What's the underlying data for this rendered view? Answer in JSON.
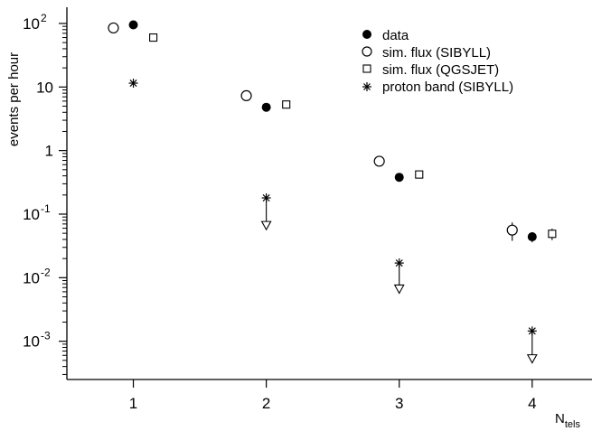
{
  "chart_data": {
    "type": "scatter",
    "title": "",
    "xlabel": "N",
    "xlabel_sub": "tels",
    "ylabel": "events per hour",
    "yscale": "log",
    "xlim": [
      0.5,
      4.45
    ],
    "ylim": [
      0.00025,
      180
    ],
    "grid": false,
    "legend_position": "top-right",
    "x_ticks": [
      {
        "value": 1,
        "label": "1"
      },
      {
        "value": 2,
        "label": "2"
      },
      {
        "value": 3,
        "label": "3"
      },
      {
        "value": 4,
        "label": "4"
      }
    ],
    "y_ticks": [
      {
        "value": 100,
        "base": "10",
        "exp": "2"
      },
      {
        "value": 10,
        "base": "10",
        "exp": ""
      },
      {
        "value": 1,
        "base": "1",
        "exp": ""
      },
      {
        "value": 0.1,
        "base": "10",
        "exp": "-1"
      },
      {
        "value": 0.01,
        "base": "10",
        "exp": "-2"
      },
      {
        "value": 0.001,
        "base": "10",
        "exp": "-3"
      }
    ],
    "series": [
      {
        "name": "data",
        "marker": "filled-circle",
        "x": [
          1,
          2,
          3,
          4
        ],
        "y": [
          95,
          4.8,
          0.38,
          0.044
        ],
        "yerr": [
          3,
          0.35,
          0.04,
          0.008
        ]
      },
      {
        "name": "sim. flux (SIBYLL)",
        "marker": "open-circle",
        "x": [
          0.85,
          1.85,
          2.85,
          3.85
        ],
        "y": [
          85,
          7.3,
          0.68,
          0.056
        ],
        "yerr": [
          5,
          0.6,
          0.12,
          0.018
        ]
      },
      {
        "name": "sim. flux (QGSJET)",
        "marker": "open-square",
        "x": [
          1.15,
          2.15,
          3.15,
          4.15
        ],
        "y": [
          60,
          5.3,
          0.42,
          0.049
        ],
        "yerr": [
          2,
          0.3,
          0.03,
          0.01
        ]
      },
      {
        "name": "proton band (SIBYLL)",
        "marker": "asterisk",
        "x": [
          1,
          2,
          3,
          4
        ],
        "y": [
          11.5,
          0.18,
          0.017,
          0.00145
        ],
        "lower_limit": [
          null,
          0.065,
          0.0065,
          0.00052
        ]
      }
    ]
  }
}
